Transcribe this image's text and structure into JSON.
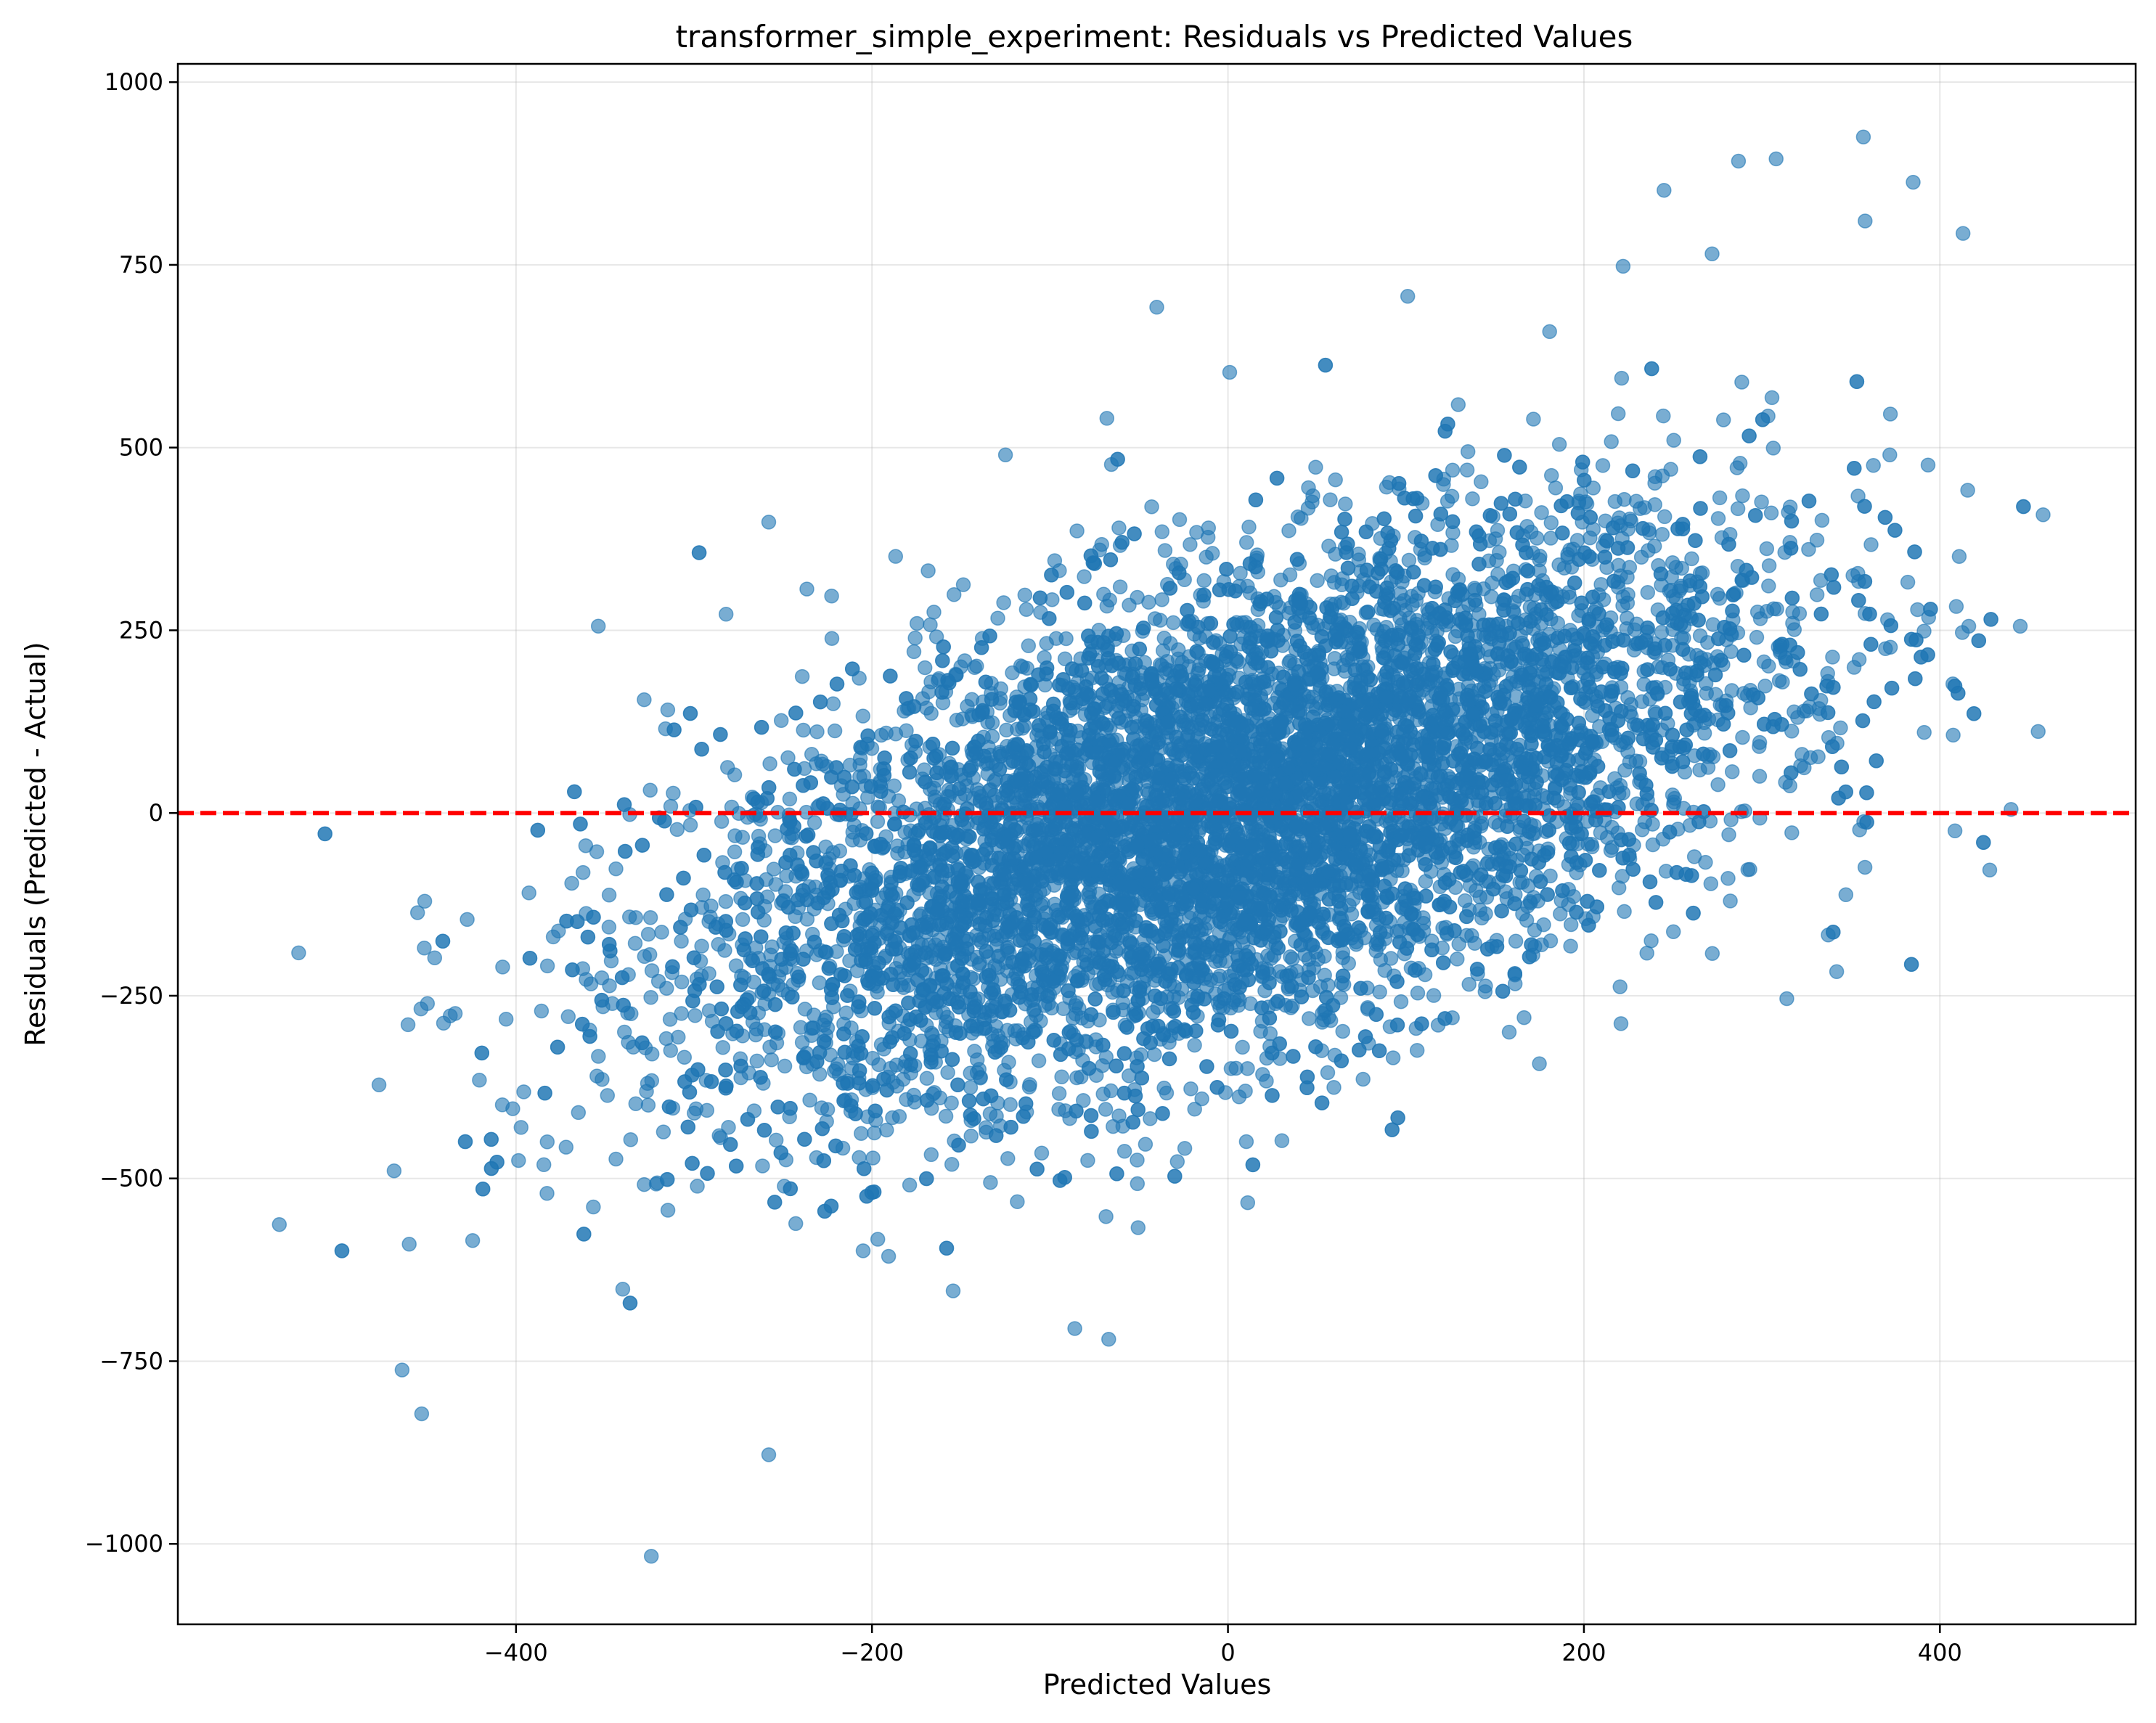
{
  "chart_data": {
    "type": "scatter",
    "title": "transformer_simple_experiment: Residuals vs Predicted Values",
    "xlabel": "Predicted Values",
    "ylabel": "Residuals (Predicted - Actual)",
    "xlim": [
      -590,
      510
    ],
    "ylim": [
      -1110,
      1025
    ],
    "xticks": [
      -400,
      -200,
      0,
      200,
      400
    ],
    "xtick_labels": [
      "−400",
      "−200",
      "0",
      "200",
      "400"
    ],
    "yticks": [
      -1000,
      -750,
      -500,
      -250,
      0,
      250,
      500,
      750,
      1000
    ],
    "ytick_labels": [
      "−1000",
      "−750",
      "−500",
      "−250",
      "0",
      "250",
      "500",
      "750",
      "1000"
    ],
    "grid": true,
    "reference_line": {
      "y": 0,
      "color": "#ff0000",
      "style": "dashed"
    },
    "point_color": "#1f77b4",
    "point_alpha": 0.6,
    "cloud_model": {
      "n_points": 9000,
      "x_mean": 0,
      "x_std": 150,
      "slope": 0.72,
      "intercept": 0,
      "residual_std": 160
    },
    "series": [
      {
        "name": "",
        "notable_points": [
          [
            -533,
            -563
          ],
          [
            -477,
            -372
          ],
          [
            -464,
            -762
          ],
          [
            -453,
            -822
          ],
          [
            -460,
            -590
          ],
          [
            -324,
            -1017
          ],
          [
            -258,
            -878
          ],
          [
            -67,
            -720
          ],
          [
            -40,
            692
          ],
          [
            -258,
            398
          ],
          [
            245,
            852
          ],
          [
            308,
            895
          ],
          [
            357,
            925
          ],
          [
            385,
            863
          ],
          [
            358,
            810
          ],
          [
            413,
            793
          ],
          [
            272,
            765
          ],
          [
            222,
            748
          ],
          [
            101,
            707
          ],
          [
            458,
            408
          ],
          [
            440,
            5
          ],
          [
            428,
            -78
          ],
          [
            342,
            -217
          ],
          [
            314,
            -254
          ],
          [
            -328,
            155
          ],
          [
            -282,
            272
          ],
          [
            -125,
            490
          ],
          [
            -68,
            540
          ],
          [
            1,
            603
          ],
          [
            175,
            -343
          ]
        ]
      }
    ]
  }
}
